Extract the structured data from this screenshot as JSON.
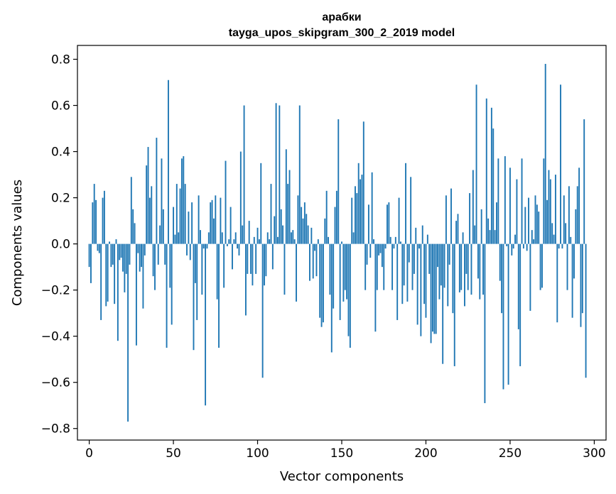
{
  "chart_data": {
    "type": "bar",
    "title_line1": "арабки",
    "title_line2": "tayga_upos_skipgram_300_2_2019 model",
    "xlabel": "Vector components",
    "ylabel": "Components values",
    "xlim": [
      -7,
      307
    ],
    "ylim": [
      -0.85,
      0.86
    ],
    "xticks": [
      0,
      50,
      100,
      150,
      200,
      250,
      300
    ],
    "yticks": [
      -0.8,
      -0.6,
      -0.4,
      -0.2,
      0.0,
      0.2,
      0.4,
      0.6,
      0.8
    ],
    "ytick_labels": [
      "−0.8",
      "−0.6",
      "−0.4",
      "−0.2",
      "0.0",
      "0.2",
      "0.4",
      "0.6",
      "0.8"
    ],
    "bar_color": "#1f77b4",
    "values": [
      -0.1,
      -0.17,
      0.18,
      0.26,
      0.19,
      -0.03,
      -0.04,
      -0.33,
      0.2,
      0.23,
      -0.27,
      -0.25,
      0.01,
      -0.1,
      -0.09,
      -0.26,
      0.02,
      -0.42,
      -0.07,
      -0.06,
      -0.12,
      -0.21,
      -0.13,
      -0.77,
      -0.09,
      0.29,
      0.15,
      0.09,
      -0.44,
      -0.04,
      -0.12,
      -0.1,
      -0.28,
      -0.05,
      0.34,
      0.42,
      0.2,
      0.25,
      -0.14,
      -0.2,
      0.46,
      -0.09,
      0.08,
      0.37,
      0.15,
      -0.09,
      -0.45,
      0.71,
      -0.19,
      -0.35,
      0.16,
      0.04,
      0.26,
      0.05,
      0.24,
      0.37,
      0.38,
      0.26,
      -0.05,
      0.14,
      -0.07,
      0.18,
      -0.46,
      -0.17,
      -0.33,
      0.21,
      0.06,
      -0.22,
      -0.02,
      -0.7,
      -0.02,
      0.05,
      0.18,
      0.19,
      0.11,
      0.21,
      -0.24,
      -0.45,
      0.2,
      0.05,
      -0.19,
      0.36,
      -0.01,
      0.02,
      0.16,
      -0.11,
      0.02,
      0.05,
      -0.02,
      -0.05,
      0.4,
      0.08,
      0.6,
      -0.31,
      -0.13,
      0.1,
      -0.13,
      -0.18,
      0.03,
      -0.13,
      0.07,
      0.02,
      0.35,
      -0.58,
      -0.18,
      -0.14,
      0.05,
      0.02,
      0.26,
      -0.11,
      0.12,
      0.61,
      0.03,
      0.6,
      0.15,
      0.08,
      -0.22,
      0.41,
      0.26,
      0.32,
      0.05,
      0.06,
      0.02,
      -0.25,
      0.21,
      0.6,
      0.16,
      0.11,
      0.18,
      0.13,
      0.08,
      -0.16,
      0.07,
      -0.15,
      -0.03,
      -0.14,
      0.02,
      -0.32,
      -0.36,
      -0.34,
      0.11,
      0.23,
      0.03,
      -0.22,
      -0.47,
      -0.28,
      0.16,
      0.23,
      0.54,
      -0.33,
      0.01,
      -0.25,
      -0.2,
      -0.24,
      -0.4,
      -0.45,
      0.2,
      0.05,
      0.25,
      0.22,
      0.35,
      0.28,
      0.3,
      0.53,
      -0.2,
      -0.09,
      0.17,
      -0.06,
      0.31,
      0.02,
      -0.38,
      -0.2,
      -0.05,
      -0.04,
      -0.1,
      -0.2,
      -0.02,
      0.17,
      0.18,
      0.03,
      -0.2,
      -0.02,
      0.03,
      -0.33,
      0.2,
      0.01,
      -0.26,
      -0.18,
      0.35,
      -0.25,
      -0.08,
      0.29,
      -0.2,
      -0.13,
      0.07,
      -0.35,
      -0.02,
      -0.4,
      0.08,
      -0.26,
      -0.32,
      0.04,
      -0.13,
      -0.43,
      -0.38,
      -0.39,
      -0.39,
      -0.1,
      -0.24,
      -0.18,
      -0.52,
      -0.19,
      0.21,
      -0.27,
      -0.09,
      0.24,
      -0.3,
      -0.53,
      0.1,
      0.13,
      -0.21,
      -0.2,
      0.05,
      -0.27,
      -0.13,
      -0.2,
      0.22,
      -0.22,
      0.32,
      0.08,
      0.69,
      -0.15,
      -0.24,
      0.15,
      -0.22,
      -0.69,
      0.63,
      0.11,
      0.06,
      0.59,
      0.5,
      0.06,
      0.18,
      0.37,
      -0.16,
      -0.3,
      -0.63,
      0.38,
      -0.01,
      -0.61,
      0.33,
      -0.05,
      -0.02,
      0.04,
      0.28,
      -0.37,
      -0.53,
      0.37,
      -0.02,
      0.16,
      -0.03,
      0.2,
      -0.29,
      0.06,
      0.02,
      0.21,
      0.17,
      0.14,
      -0.2,
      -0.19,
      0.37,
      0.78,
      0.19,
      0.32,
      0.28,
      0.09,
      0.04,
      0.3,
      -0.34,
      -0.02,
      0.69,
      -0.02,
      0.21,
      0.09,
      -0.2,
      0.25,
      0.03,
      -0.32,
      -0.15,
      0.15,
      0.25,
      0.33,
      -0.36,
      -0.3,
      0.54,
      -0.58
    ]
  }
}
